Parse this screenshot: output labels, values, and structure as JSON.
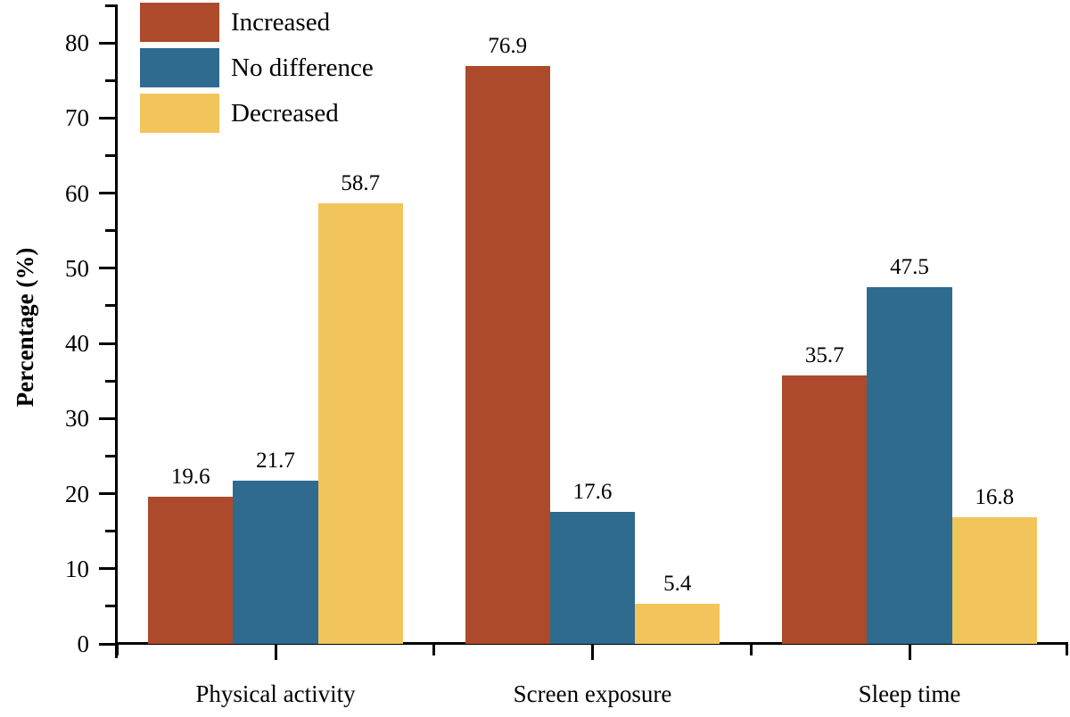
{
  "chart_data": {
    "type": "bar",
    "title": "",
    "xlabel": "",
    "ylabel": "Percentage (%)",
    "categories": [
      "Physical activity",
      "Screen exposure",
      "Sleep time"
    ],
    "series": [
      {
        "name": "Increased",
        "color": "#AC4A2B",
        "values": [
          19.6,
          76.9,
          35.7
        ]
      },
      {
        "name": "No difference",
        "color": "#2F6A8F",
        "values": [
          21.7,
          17.6,
          47.5
        ]
      },
      {
        "name": "Decreased",
        "color": "#F2C45C",
        "values": [
          58.7,
          5.4,
          16.8
        ]
      }
    ],
    "bar_value_labels": [
      [
        "19.6",
        "21.7",
        "58.7"
      ],
      [
        "76.9",
        "17.6",
        "5.4"
      ],
      [
        "35.7",
        "47.5",
        "16.8"
      ]
    ],
    "ylim": [
      0,
      85
    ],
    "yticks": [
      0,
      10,
      20,
      30,
      40,
      50,
      60,
      70,
      80
    ],
    "y_minor_tick_step": 5,
    "grid": false,
    "legend_position": "upper-left",
    "axis_color": "#000000",
    "text_color": "#000000"
  }
}
